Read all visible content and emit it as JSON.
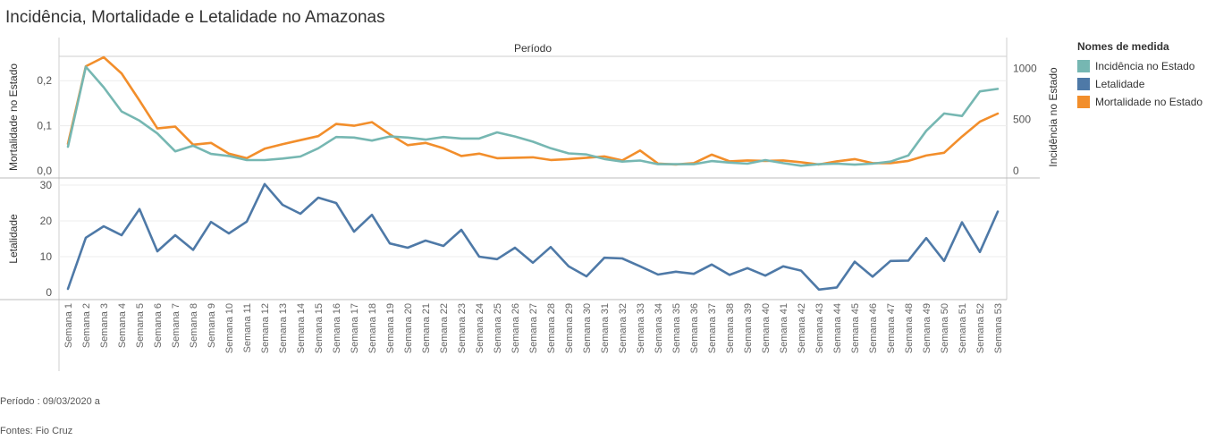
{
  "title": "Incidência, Mortalidade e Letalidade no Amazonas",
  "footer": {
    "periodo": "Período : 09/03/2020 a",
    "fontes": "Fontes: Fio Cruz"
  },
  "legend": {
    "title": "Nomes de medida",
    "items": [
      {
        "label": "Incidência no Estado",
        "color": "#76b7b2"
      },
      {
        "label": "Letalidade",
        "color": "#4e79a7"
      },
      {
        "label": "Mortalidade no Estado",
        "color": "#f28e2b"
      }
    ]
  },
  "chart_data": {
    "type": "line",
    "header": "Período",
    "categories": [
      "Semana 1",
      "Semana 2",
      "Semana 3",
      "Semana 4",
      "Semana 5",
      "Semana 6",
      "Semana 7",
      "Semana 8",
      "Semana 9",
      "Semana 10",
      "Semana 11",
      "Semana 12",
      "Semana 13",
      "Semana 14",
      "Semana 15",
      "Semana 16",
      "Semana 17",
      "Semana 18",
      "Semana 19",
      "Semana 20",
      "Semana 21",
      "Semana 22",
      "Semana 23",
      "Semana 24",
      "Semana 25",
      "Semana 26",
      "Semana 27",
      "Semana 28",
      "Semana 29",
      "Semana 30",
      "Semana 31",
      "Semana 32",
      "Semana 33",
      "Semana 34",
      "Semana 35",
      "Semana 36",
      "Semana 37",
      "Semana 38",
      "Semana 39",
      "Semana 40",
      "Semana 41",
      "Semana 42",
      "Semana 43",
      "Semana 44",
      "Semana 45",
      "Semana 46",
      "Semana 47",
      "Semana 48",
      "Semana 49",
      "Semana 50",
      "Semana 51",
      "Semana 52",
      "Semana 53"
    ],
    "top_panel": {
      "left_axis": {
        "label": "Mortalidade no Estado",
        "ticks": [
          "0,0",
          "0,1",
          "0,2"
        ],
        "ylim": [
          0,
          0.25
        ]
      },
      "right_axis": {
        "label": "Incidência no Estado",
        "ticks": [
          "0",
          "500",
          "1000"
        ],
        "ylim": [
          0,
          1100
        ]
      },
      "series": [
        {
          "name": "Mortalidade no Estado",
          "axis": "left",
          "color": "#f28e2b",
          "values": [
            0.06,
            0.232,
            0.252,
            0.216,
            0.156,
            0.094,
            0.098,
            0.058,
            0.062,
            0.038,
            0.028,
            0.049,
            0.059,
            0.068,
            0.077,
            0.104,
            0.1,
            0.108,
            0.081,
            0.057,
            0.062,
            0.05,
            0.033,
            0.038,
            0.028,
            0.029,
            0.03,
            0.024,
            0.026,
            0.029,
            0.032,
            0.023,
            0.045,
            0.016,
            0.014,
            0.017,
            0.036,
            0.021,
            0.023,
            0.022,
            0.023,
            0.019,
            0.014,
            0.021,
            0.026,
            0.017,
            0.017,
            0.022,
            0.034,
            0.04,
            0.076,
            0.109,
            0.127
          ]
        },
        {
          "name": "Incidência no Estado",
          "axis": "right",
          "color": "#76b7b2",
          "values": [
            235,
            1015,
            815,
            580,
            490,
            365,
            190,
            245,
            165,
            145,
            105,
            105,
            120,
            140,
            220,
            330,
            325,
            295,
            335,
            325,
            305,
            330,
            315,
            315,
            375,
            335,
            285,
            220,
            170,
            160,
            115,
            90,
            100,
            65,
            65,
            65,
            95,
            80,
            70,
            105,
            75,
            50,
            65,
            70,
            60,
            70,
            90,
            150,
            390,
            560,
            535,
            775,
            800
          ]
        }
      ]
    },
    "bottom_panel": {
      "left_axis": {
        "label": "Letalidade",
        "ticks": [
          "0",
          "10",
          "20",
          "30"
        ],
        "ylim": [
          -2,
          32
        ]
      },
      "series": [
        {
          "name": "Letalidade",
          "color": "#4e79a7",
          "values": [
            1.0,
            15.3,
            18.5,
            16.0,
            23.3,
            11.5,
            16.0,
            11.9,
            19.7,
            16.5,
            19.8,
            30.3,
            24.5,
            22.0,
            26.5,
            25.0,
            17.0,
            21.7,
            13.7,
            12.5,
            14.5,
            13.0,
            17.5,
            10.0,
            9.3,
            12.5,
            8.3,
            12.7,
            7.3,
            4.5,
            9.7,
            9.5,
            7.3,
            5.0,
            5.8,
            5.2,
            7.8,
            4.9,
            6.8,
            4.7,
            7.3,
            6.1,
            0.8,
            1.4,
            8.6,
            4.4,
            8.8,
            8.9,
            15.2,
            8.8,
            19.6,
            11.3,
            22.6
          ]
        }
      ]
    }
  }
}
